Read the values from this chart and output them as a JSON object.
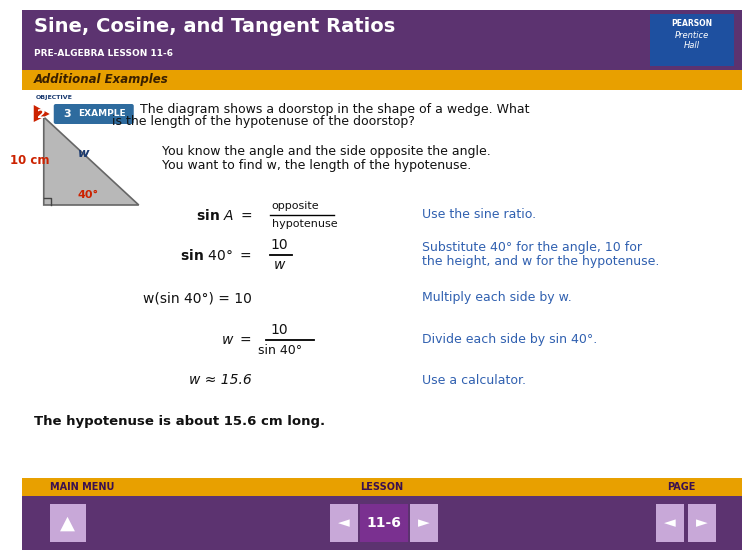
{
  "title": "Sine, Cosine, and Tangent Ratios",
  "subtitle": "PRE-ALGEBRA LESSON 11-6",
  "section_label": "Additional Examples",
  "header_bg": "#5c3370",
  "section_bg": "#e8a000",
  "footer_bg": "#5c3370",
  "footer_yellow_bg": "#e8a000",
  "body_bg": "#ffffff",
  "title_color": "#ffffff",
  "section_color": "#3a2000",
  "example_color": "#2e6b9e",
  "example_text1": "The diagram shows a doorstop in the shape of a wedge. What",
  "example_text2": "is the length of the hypotenuse of the doorstop?",
  "triangle_label_side": "10 cm",
  "triangle_label_hyp": "w",
  "triangle_label_angle": "40°",
  "desc_text1": "You know the angle and the side opposite the angle.",
  "desc_text2": "You want to find w, the length of the hypotenuse.",
  "eq1_right_num": "opposite",
  "eq1_right_den": "hypotenuse",
  "eq1_desc": "Use the sine ratio.",
  "eq2_right_num": "10",
  "eq2_right_den": "w",
  "eq2_desc1": "Substitute 40° for the angle, 10 for",
  "eq2_desc2": "the height, and w for the hypotenuse.",
  "eq3_left": "w(sin 40°) = 10",
  "eq3_desc": "Multiply each side by w.",
  "eq4_right_num": "10",
  "eq4_right_den": "sin 40°",
  "eq4_desc": "Divide each side by sin 40°.",
  "eq5_left": "w ≈ 15.6",
  "eq5_desc": "Use a calculator.",
  "conclusion": "The hypotenuse is about 15.6 cm long.",
  "footer_main_menu": "MAIN MENU",
  "footer_lesson": "LESSON",
  "footer_page": "PAGE",
  "footer_lesson_num": "11-6",
  "blue_color": "#3060b0",
  "dark_blue": "#1a3a70",
  "red_color": "#cc2200",
  "black_color": "#111111",
  "gray_triangle": "#b8b8b8",
  "pearson_bg": "#1e50a0"
}
